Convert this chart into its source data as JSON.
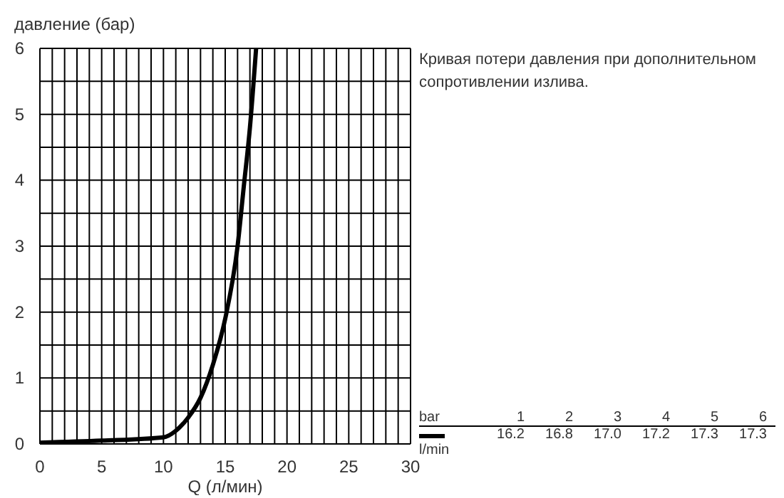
{
  "chart_data": {
    "type": "line",
    "xlabel": "Q (л/мин)",
    "ylabel": "давление (бар)",
    "x": [
      0,
      5,
      10,
      11,
      12,
      13,
      14,
      15,
      16,
      16.5,
      17,
      17.5
    ],
    "series": [
      {
        "color": "#000000",
        "values": [
          0.02,
          0.05,
          0.1,
          0.2,
          0.4,
          0.7,
          1.2,
          1.9,
          3,
          3.9,
          4.8,
          6
        ]
      }
    ],
    "xlim": [
      0,
      30
    ],
    "ylim": [
      0,
      6
    ],
    "xticks": [
      0,
      {
        "value": 1,
        "label": null
      },
      {
        "value": 2,
        "label": null
      },
      {
        "value": 3,
        "label": null
      },
      {
        "value": 4,
        "label": null
      },
      5,
      {
        "value": 6,
        "label": null
      },
      {
        "value": 7,
        "label": null
      },
      {
        "value": 8,
        "label": null
      },
      {
        "value": 9,
        "label": null
      },
      10,
      {
        "value": 11,
        "label": null
      },
      {
        "value": 12,
        "label": null
      },
      {
        "value": 13,
        "label": null
      },
      {
        "value": 14,
        "label": null
      },
      15,
      {
        "value": 16,
        "label": null
      },
      {
        "value": 17,
        "label": null
      },
      {
        "value": 18,
        "label": null
      },
      {
        "value": 19,
        "label": null
      },
      20,
      {
        "value": 21,
        "label": null
      },
      {
        "value": 22,
        "label": null
      },
      {
        "value": 23,
        "label": null
      },
      {
        "value": 24,
        "label": null
      },
      25,
      {
        "value": 26,
        "label": null
      },
      {
        "value": 27,
        "label": null
      },
      {
        "value": 28,
        "label": null
      },
      {
        "value": 29,
        "label": null
      },
      30
    ],
    "yticks": [
      0,
      {
        "value": 0.5,
        "label": null
      },
      1,
      {
        "value": 1.5,
        "label": null
      },
      2,
      {
        "value": 2.5,
        "label": null
      },
      3,
      {
        "value": 3.5,
        "label": null
      },
      4,
      {
        "value": 4.5,
        "label": null
      },
      5,
      {
        "value": 5.5,
        "label": null
      },
      6
    ],
    "grid": true,
    "marker": "none",
    "line_style": "solid",
    "annotations": [
      "Кривая потери давления при дополнительном сопротивлении излива.",
      "bar",
      "1",
      "2",
      "3",
      "4",
      "5",
      "6",
      "l/min",
      "16.2",
      "16.8",
      "17.0",
      "17.2",
      "17.3",
      "17.3"
    ]
  }
}
